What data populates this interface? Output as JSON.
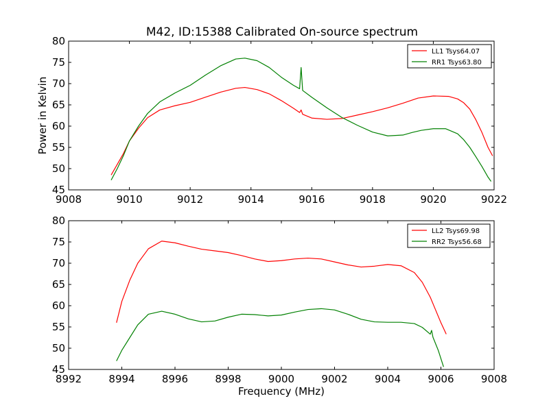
{
  "figure": {
    "title": "M42, ID:15388 Calibrated On-source spectrum"
  },
  "chart_data": [
    {
      "type": "line",
      "title": "M42, ID:15388 Calibrated On-source spectrum",
      "xlabel": "",
      "ylabel": "Power in Kelvin",
      "xlim": [
        9008,
        9022
      ],
      "ylim": [
        45,
        80
      ],
      "xticks": [
        9008,
        9010,
        9012,
        9014,
        9016,
        9018,
        9020,
        9022
      ],
      "yticks": [
        45,
        50,
        55,
        60,
        65,
        70,
        75,
        80
      ],
      "grid": false,
      "legend_position": "top-right",
      "series": [
        {
          "name": "LL1 Tsys64.07",
          "color": "#ff0000",
          "points": [
            [
              9009.4,
              48.5
            ],
            [
              9009.6,
              51.0
            ],
            [
              9009.8,
              53.5
            ],
            [
              9010.0,
              56.5
            ],
            [
              9010.3,
              59.5
            ],
            [
              9010.6,
              62.0
            ],
            [
              9011.0,
              63.8
            ],
            [
              9011.5,
              64.8
            ],
            [
              9012.0,
              65.6
            ],
            [
              9012.5,
              66.8
            ],
            [
              9013.0,
              68.0
            ],
            [
              9013.5,
              68.9
            ],
            [
              9013.8,
              69.1
            ],
            [
              9014.2,
              68.6
            ],
            [
              9014.6,
              67.6
            ],
            [
              9015.0,
              66.0
            ],
            [
              9015.4,
              64.2
            ],
            [
              9015.6,
              63.2
            ],
            [
              9015.65,
              63.8
            ],
            [
              9015.7,
              62.8
            ],
            [
              9016.0,
              61.9
            ],
            [
              9016.5,
              61.6
            ],
            [
              9017.0,
              61.8
            ],
            [
              9017.5,
              62.6
            ],
            [
              9018.0,
              63.4
            ],
            [
              9018.5,
              64.3
            ],
            [
              9019.0,
              65.4
            ],
            [
              9019.5,
              66.6
            ],
            [
              9020.0,
              67.1
            ],
            [
              9020.5,
              67.0
            ],
            [
              9020.8,
              66.4
            ],
            [
              9021.0,
              65.5
            ],
            [
              9021.2,
              64.0
            ],
            [
              9021.4,
              61.5
            ],
            [
              9021.6,
              58.5
            ],
            [
              9021.8,
              55.0
            ],
            [
              9021.95,
              53.0
            ]
          ]
        },
        {
          "name": "RR1 Tsys63.80",
          "color": "#008000",
          "points": [
            [
              9009.4,
              47.3
            ],
            [
              9009.6,
              50.0
            ],
            [
              9009.8,
              53.0
            ],
            [
              9010.0,
              56.5
            ],
            [
              9010.3,
              60.0
            ],
            [
              9010.6,
              63.0
            ],
            [
              9011.0,
              65.7
            ],
            [
              9011.5,
              67.8
            ],
            [
              9012.0,
              69.6
            ],
            [
              9012.5,
              72.0
            ],
            [
              9013.0,
              74.2
            ],
            [
              9013.5,
              75.8
            ],
            [
              9013.8,
              76.0
            ],
            [
              9014.2,
              75.4
            ],
            [
              9014.6,
              73.8
            ],
            [
              9015.0,
              71.5
            ],
            [
              9015.4,
              69.6
            ],
            [
              9015.6,
              68.8
            ],
            [
              9015.65,
              73.8
            ],
            [
              9015.7,
              68.4
            ],
            [
              9016.0,
              66.8
            ],
            [
              9016.5,
              64.3
            ],
            [
              9017.0,
              62.0
            ],
            [
              9017.5,
              60.2
            ],
            [
              9018.0,
              58.6
            ],
            [
              9018.5,
              57.7
            ],
            [
              9019.0,
              57.9
            ],
            [
              9019.3,
              58.5
            ],
            [
              9019.6,
              59.0
            ],
            [
              9020.0,
              59.4
            ],
            [
              9020.4,
              59.4
            ],
            [
              9020.8,
              58.2
            ],
            [
              9021.0,
              56.8
            ],
            [
              9021.2,
              55.0
            ],
            [
              9021.4,
              52.8
            ],
            [
              9021.6,
              50.5
            ],
            [
              9021.8,
              48.0
            ],
            [
              9021.9,
              47.0
            ]
          ]
        }
      ]
    },
    {
      "type": "line",
      "title": "",
      "xlabel": "Frequency (MHz)",
      "ylabel": "",
      "xlim": [
        8992,
        9008
      ],
      "ylim": [
        45,
        80
      ],
      "xticks": [
        8992,
        8994,
        8996,
        8998,
        9000,
        9002,
        9004,
        9006,
        9008
      ],
      "yticks": [
        45,
        50,
        55,
        60,
        65,
        70,
        75,
        80
      ],
      "grid": false,
      "legend_position": "top-right",
      "series": [
        {
          "name": "LL2 Tsys69.98",
          "color": "#ff0000",
          "points": [
            [
              8993.8,
              56.0
            ],
            [
              8994.0,
              61.0
            ],
            [
              8994.3,
              66.0
            ],
            [
              8994.6,
              70.0
            ],
            [
              8995.0,
              73.4
            ],
            [
              8995.5,
              75.2
            ],
            [
              8996.0,
              74.8
            ],
            [
              8996.5,
              74.0
            ],
            [
              8997.0,
              73.3
            ],
            [
              8997.5,
              72.9
            ],
            [
              8998.0,
              72.5
            ],
            [
              8998.5,
              71.8
            ],
            [
              8999.0,
              71.0
            ],
            [
              8999.5,
              70.4
            ],
            [
              9000.0,
              70.6
            ],
            [
              9000.5,
              71.0
            ],
            [
              9001.0,
              71.2
            ],
            [
              9001.5,
              71.0
            ],
            [
              9002.0,
              70.3
            ],
            [
              9002.5,
              69.6
            ],
            [
              9003.0,
              69.1
            ],
            [
              9003.5,
              69.3
            ],
            [
              9004.0,
              69.7
            ],
            [
              9004.5,
              69.4
            ],
            [
              9005.0,
              67.8
            ],
            [
              9005.3,
              65.5
            ],
            [
              9005.6,
              62.0
            ],
            [
              9005.8,
              59.0
            ],
            [
              9006.0,
              56.0
            ],
            [
              9006.2,
              53.3
            ]
          ]
        },
        {
          "name": "RR2 Tsys56.68",
          "color": "#008000",
          "points": [
            [
              8993.8,
              47.0
            ],
            [
              8994.0,
              49.5
            ],
            [
              8994.3,
              52.5
            ],
            [
              8994.6,
              55.5
            ],
            [
              8995.0,
              58.0
            ],
            [
              8995.5,
              58.7
            ],
            [
              8996.0,
              58.0
            ],
            [
              8996.5,
              56.9
            ],
            [
              8997.0,
              56.2
            ],
            [
              8997.5,
              56.4
            ],
            [
              8998.0,
              57.3
            ],
            [
              8998.5,
              58.0
            ],
            [
              8999.0,
              57.9
            ],
            [
              8999.5,
              57.6
            ],
            [
              9000.0,
              57.8
            ],
            [
              9000.5,
              58.5
            ],
            [
              9001.0,
              59.1
            ],
            [
              9001.5,
              59.3
            ],
            [
              9002.0,
              59.0
            ],
            [
              9002.5,
              58.0
            ],
            [
              9003.0,
              56.8
            ],
            [
              9003.5,
              56.2
            ],
            [
              9004.0,
              56.1
            ],
            [
              9004.5,
              56.1
            ],
            [
              9005.0,
              55.8
            ],
            [
              9005.3,
              54.9
            ],
            [
              9005.6,
              53.3
            ],
            [
              9005.65,
              54.2
            ],
            [
              9005.7,
              52.6
            ],
            [
              9005.9,
              49.5
            ],
            [
              9006.1,
              45.6
            ]
          ]
        }
      ]
    }
  ]
}
